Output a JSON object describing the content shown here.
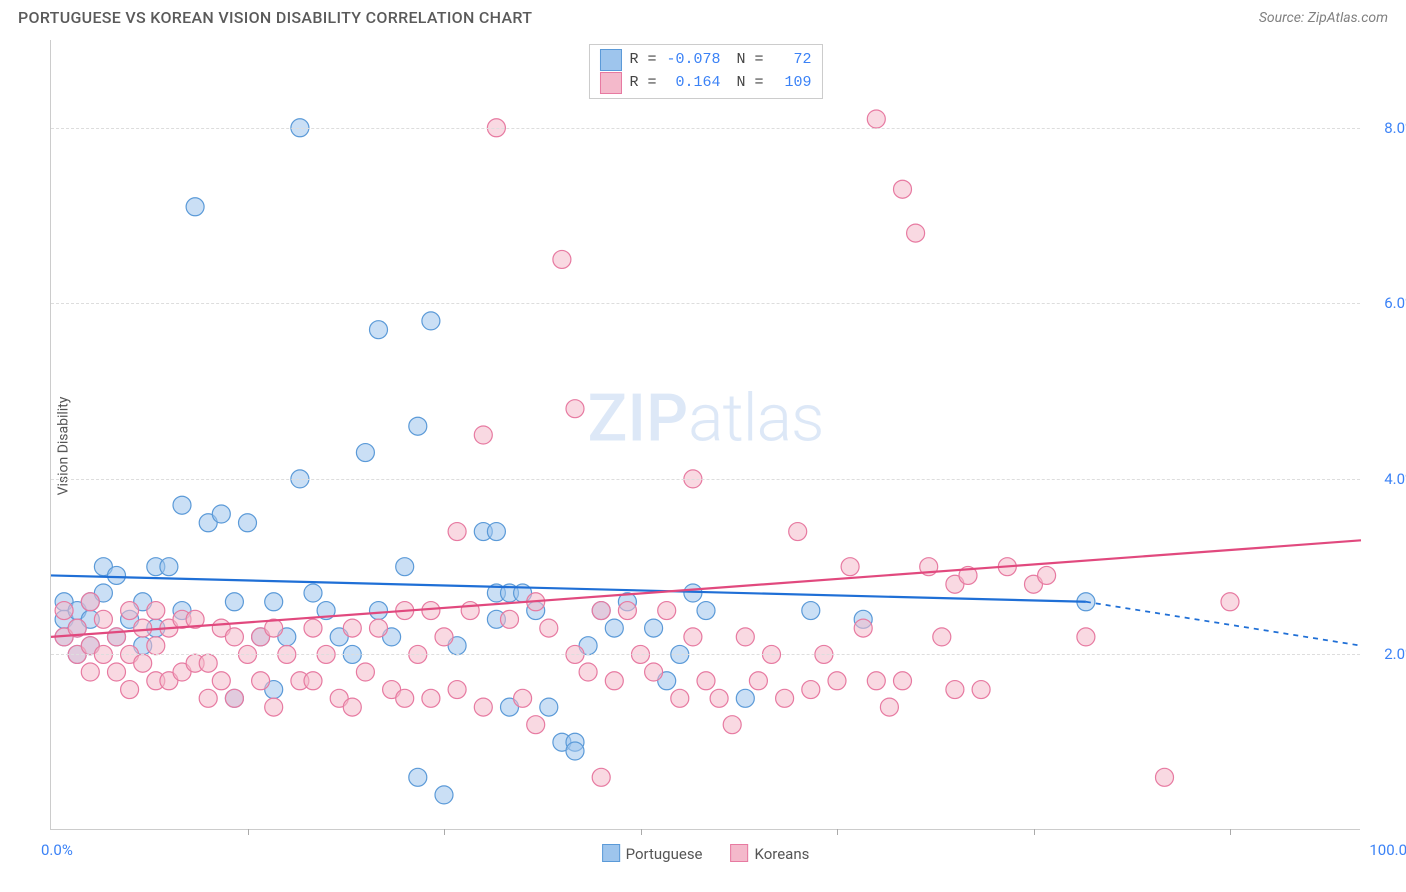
{
  "title": "PORTUGUESE VS KOREAN VISION DISABILITY CORRELATION CHART",
  "source": "Source: ZipAtlas.com",
  "ylabel": "Vision Disability",
  "chart": {
    "type": "scatter",
    "xlim": [
      0,
      100
    ],
    "ylim": [
      0,
      9
    ],
    "ytick_values": [
      2.0,
      4.0,
      6.0,
      8.0
    ],
    "ytick_labels": [
      "2.0%",
      "4.0%",
      "6.0%",
      "8.0%"
    ],
    "xtick_values": [
      15,
      30,
      45,
      60,
      75,
      90
    ],
    "xaxis_left_label": "0.0%",
    "xaxis_right_label": "100.0%",
    "background_color": "#ffffff",
    "grid_color": "#dddddd",
    "marker_radius": 9,
    "marker_opacity": 0.55,
    "line_width": 2.2,
    "series": [
      {
        "name": "Portuguese",
        "color_fill": "#9ec5ed",
        "color_stroke": "#5b9ad8",
        "color_line": "#1f6fd6",
        "R": -0.078,
        "N": 72,
        "trend": {
          "x1": 0,
          "y1": 2.9,
          "x2": 79,
          "y2": 2.6,
          "x2_dashed": 100,
          "y2_dashed": 2.1
        },
        "points": [
          [
            1,
            2.6
          ],
          [
            1,
            2.4
          ],
          [
            1,
            2.2
          ],
          [
            2,
            2.5
          ],
          [
            2,
            2.3
          ],
          [
            2,
            2.0
          ],
          [
            3,
            2.6
          ],
          [
            3,
            2.4
          ],
          [
            3,
            2.1
          ],
          [
            4,
            3.0
          ],
          [
            4,
            2.7
          ],
          [
            5,
            2.9
          ],
          [
            5,
            2.2
          ],
          [
            6,
            2.4
          ],
          [
            7,
            2.6
          ],
          [
            7,
            2.1
          ],
          [
            8,
            3.0
          ],
          [
            8,
            2.3
          ],
          [
            9,
            3.0
          ],
          [
            10,
            3.7
          ],
          [
            10,
            2.5
          ],
          [
            11,
            7.1
          ],
          [
            12,
            3.5
          ],
          [
            13,
            3.6
          ],
          [
            14,
            2.6
          ],
          [
            14,
            1.5
          ],
          [
            15,
            3.5
          ],
          [
            16,
            2.2
          ],
          [
            17,
            2.6
          ],
          [
            17,
            1.6
          ],
          [
            18,
            2.2
          ],
          [
            19,
            8.0
          ],
          [
            19,
            4.0
          ],
          [
            20,
            2.7
          ],
          [
            21,
            2.5
          ],
          [
            22,
            2.2
          ],
          [
            23,
            2.0
          ],
          [
            24,
            4.3
          ],
          [
            25,
            5.7
          ],
          [
            25,
            2.5
          ],
          [
            26,
            2.2
          ],
          [
            27,
            3.0
          ],
          [
            28,
            4.6
          ],
          [
            28,
            0.6
          ],
          [
            29,
            5.8
          ],
          [
            30,
            0.4
          ],
          [
            31,
            2.1
          ],
          [
            33,
            3.4
          ],
          [
            34,
            3.4
          ],
          [
            34,
            2.7
          ],
          [
            34,
            2.4
          ],
          [
            35,
            2.7
          ],
          [
            35,
            1.4
          ],
          [
            36,
            2.7
          ],
          [
            37,
            2.5
          ],
          [
            38,
            1.4
          ],
          [
            39,
            1.0
          ],
          [
            40,
            1.0
          ],
          [
            40,
            0.9
          ],
          [
            41,
            2.1
          ],
          [
            42,
            2.5
          ],
          [
            43,
            2.3
          ],
          [
            44,
            2.6
          ],
          [
            46,
            2.3
          ],
          [
            47,
            1.7
          ],
          [
            48,
            2.0
          ],
          [
            49,
            2.7
          ],
          [
            50,
            2.5
          ],
          [
            53,
            1.5
          ],
          [
            58,
            2.5
          ],
          [
            62,
            2.4
          ],
          [
            79,
            2.6
          ]
        ]
      },
      {
        "name": "Koreans",
        "color_fill": "#f4b9cb",
        "color_stroke": "#e77aa1",
        "color_line": "#e1497e",
        "R": 0.164,
        "N": 109,
        "trend": {
          "x1": 0,
          "y1": 2.2,
          "x2": 100,
          "y2": 3.3
        },
        "points": [
          [
            1,
            2.5
          ],
          [
            1,
            2.2
          ],
          [
            2,
            2.3
          ],
          [
            2,
            2.0
          ],
          [
            3,
            2.6
          ],
          [
            3,
            2.1
          ],
          [
            3,
            1.8
          ],
          [
            4,
            2.4
          ],
          [
            4,
            2.0
          ],
          [
            5,
            2.2
          ],
          [
            5,
            1.8
          ],
          [
            6,
            2.5
          ],
          [
            6,
            2.0
          ],
          [
            6,
            1.6
          ],
          [
            7,
            2.3
          ],
          [
            7,
            1.9
          ],
          [
            8,
            2.5
          ],
          [
            8,
            2.1
          ],
          [
            8,
            1.7
          ],
          [
            9,
            2.3
          ],
          [
            9,
            1.7
          ],
          [
            10,
            2.4
          ],
          [
            10,
            1.8
          ],
          [
            11,
            2.4
          ],
          [
            11,
            1.9
          ],
          [
            12,
            1.9
          ],
          [
            12,
            1.5
          ],
          [
            13,
            2.3
          ],
          [
            13,
            1.7
          ],
          [
            14,
            2.2
          ],
          [
            14,
            1.5
          ],
          [
            15,
            2.0
          ],
          [
            16,
            2.2
          ],
          [
            16,
            1.7
          ],
          [
            17,
            2.3
          ],
          [
            17,
            1.4
          ],
          [
            18,
            2.0
          ],
          [
            19,
            1.7
          ],
          [
            20,
            2.3
          ],
          [
            20,
            1.7
          ],
          [
            21,
            2.0
          ],
          [
            22,
            1.5
          ],
          [
            23,
            2.3
          ],
          [
            23,
            1.4
          ],
          [
            24,
            1.8
          ],
          [
            25,
            2.3
          ],
          [
            26,
            1.6
          ],
          [
            27,
            2.5
          ],
          [
            27,
            1.5
          ],
          [
            28,
            2.0
          ],
          [
            29,
            2.5
          ],
          [
            29,
            1.5
          ],
          [
            30,
            2.2
          ],
          [
            31,
            3.4
          ],
          [
            31,
            1.6
          ],
          [
            32,
            2.5
          ],
          [
            33,
            4.5
          ],
          [
            33,
            1.4
          ],
          [
            34,
            8.0
          ],
          [
            35,
            2.4
          ],
          [
            36,
            1.5
          ],
          [
            37,
            2.6
          ],
          [
            37,
            1.2
          ],
          [
            38,
            2.3
          ],
          [
            39,
            6.5
          ],
          [
            40,
            4.8
          ],
          [
            40,
            2.0
          ],
          [
            41,
            1.8
          ],
          [
            42,
            2.5
          ],
          [
            42,
            0.6
          ],
          [
            43,
            1.7
          ],
          [
            44,
            2.5
          ],
          [
            45,
            2.0
          ],
          [
            46,
            1.8
          ],
          [
            47,
            2.5
          ],
          [
            48,
            1.5
          ],
          [
            49,
            4.0
          ],
          [
            49,
            2.2
          ],
          [
            50,
            1.7
          ],
          [
            51,
            1.5
          ],
          [
            52,
            1.2
          ],
          [
            53,
            2.2
          ],
          [
            54,
            1.7
          ],
          [
            55,
            2.0
          ],
          [
            56,
            1.5
          ],
          [
            57,
            3.4
          ],
          [
            58,
            1.6
          ],
          [
            59,
            2.0
          ],
          [
            60,
            1.7
          ],
          [
            61,
            3.0
          ],
          [
            62,
            2.3
          ],
          [
            63,
            1.7
          ],
          [
            63,
            8.1
          ],
          [
            64,
            1.4
          ],
          [
            65,
            7.3
          ],
          [
            65,
            1.7
          ],
          [
            66,
            6.8
          ],
          [
            67,
            3.0
          ],
          [
            68,
            2.2
          ],
          [
            69,
            2.8
          ],
          [
            69,
            1.6
          ],
          [
            70,
            2.9
          ],
          [
            71,
            1.6
          ],
          [
            73,
            3.0
          ],
          [
            75,
            2.8
          ],
          [
            76,
            2.9
          ],
          [
            79,
            2.2
          ],
          [
            85,
            0.6
          ],
          [
            90,
            2.6
          ]
        ]
      }
    ],
    "legend_bottom": [
      "Portuguese",
      "Koreans"
    ],
    "legend_top_rows": [
      {
        "swatch": 0,
        "R_label": "R =",
        "R_value": "-0.078",
        "N_label": "N =",
        "N_value": "72"
      },
      {
        "swatch": 1,
        "R_label": "R =",
        "R_value": "0.164",
        "N_label": "N =",
        "N_value": "109"
      }
    ]
  },
  "watermark_zip": "ZIP",
  "watermark_atlas": "atlas"
}
